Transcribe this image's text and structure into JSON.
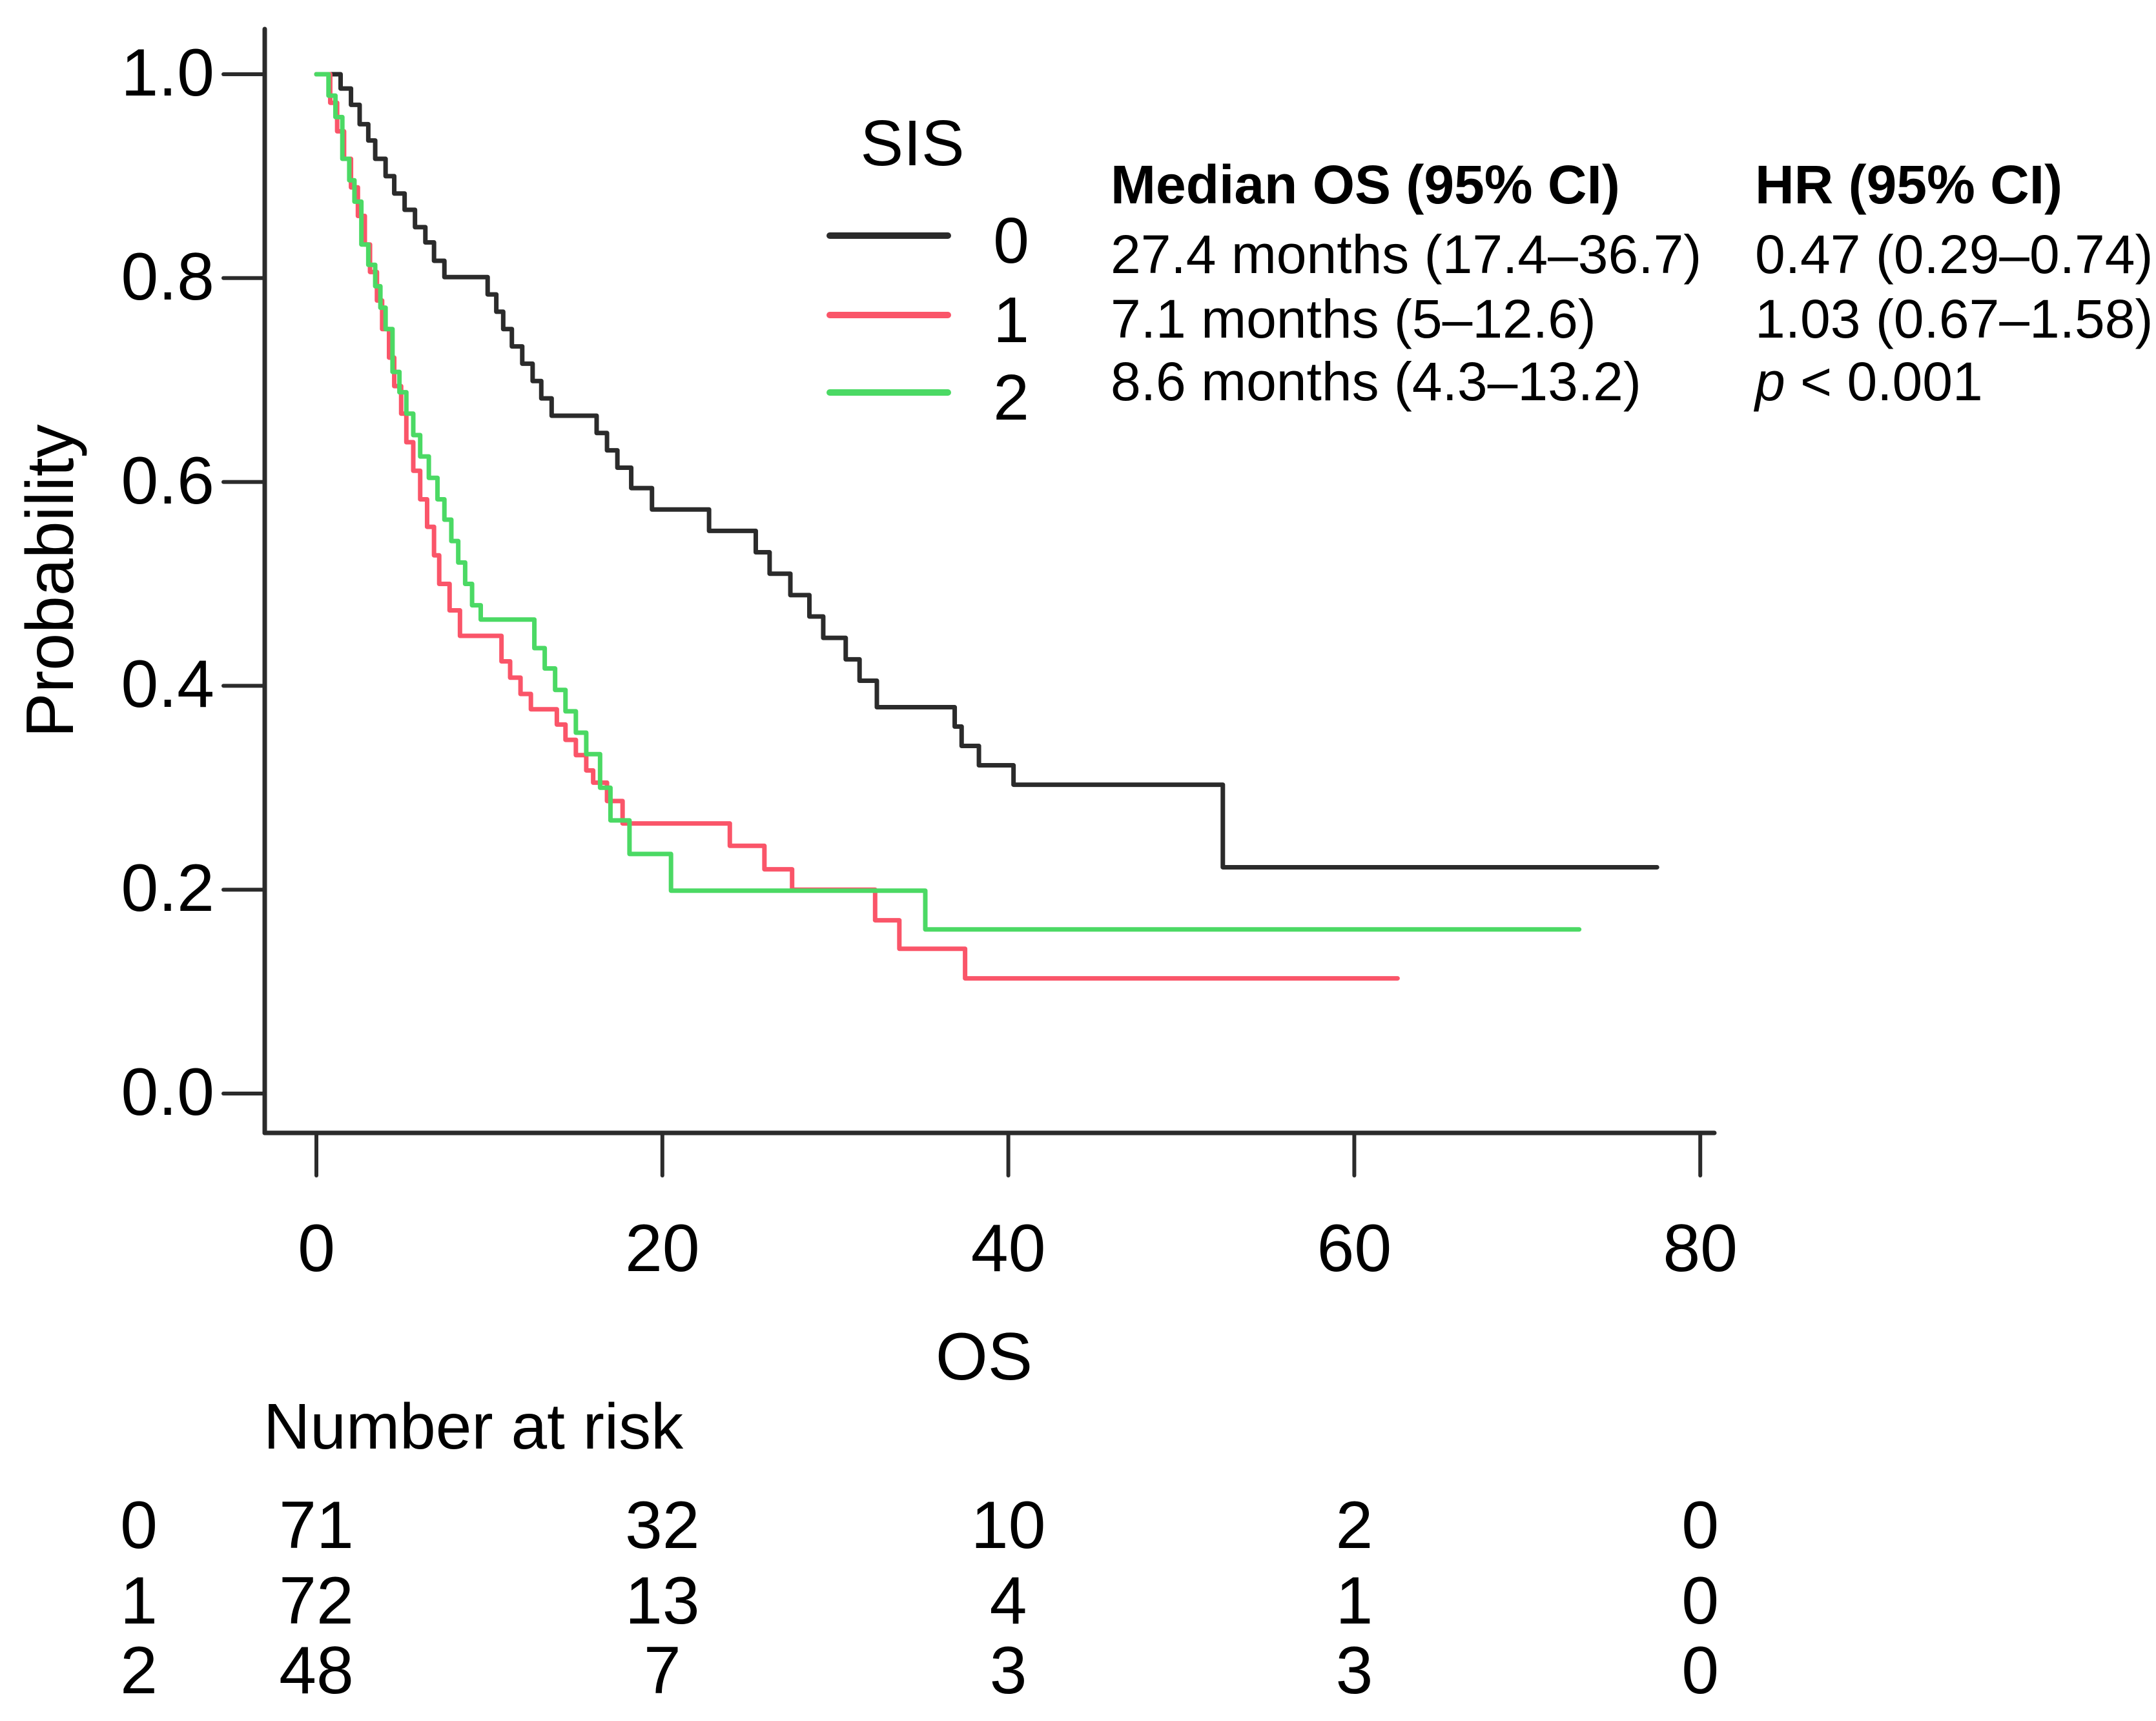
{
  "figure": {
    "background": "#ffffff",
    "text_color": "#000000"
  },
  "chart_data": {
    "type": "line",
    "subtype": "kaplan-meier-step",
    "title": "",
    "xlabel": "OS",
    "ylabel": "Probability",
    "xlim": [
      0,
      80
    ],
    "ylim": [
      0.0,
      1.0
    ],
    "xticks": [
      "0",
      "20",
      "40",
      "60",
      "80"
    ],
    "yticks": [
      "1.0",
      "0.8",
      "0.6",
      "0.4",
      "0.2",
      "0.0"
    ],
    "grid": false,
    "axis_color": "#2b2b2b",
    "legend": {
      "title": "SIS",
      "position": "upper-center-inside",
      "entries": [
        {
          "label": "0",
          "color": "#2b2b2b"
        },
        {
          "label": "1",
          "color": "#fa5569"
        },
        {
          "label": "2",
          "color": "#4bd964"
        }
      ]
    },
    "series": [
      {
        "name": "0",
        "color": "#2b2b2b",
        "median_os": "27.4 months (17.4–36.7)",
        "end_time": 77.5,
        "steps": [
          [
            0,
            1.0
          ],
          [
            1.4,
            0.986
          ],
          [
            2.0,
            0.97
          ],
          [
            2.5,
            0.951
          ],
          [
            3.0,
            0.935
          ],
          [
            3.4,
            0.917
          ],
          [
            4.0,
            0.9
          ],
          [
            4.5,
            0.883
          ],
          [
            5.1,
            0.867
          ],
          [
            5.7,
            0.85
          ],
          [
            6.3,
            0.835
          ],
          [
            6.8,
            0.817
          ],
          [
            7.4,
            0.801
          ],
          [
            9.9,
            0.784
          ],
          [
            10.4,
            0.767
          ],
          [
            10.8,
            0.75
          ],
          [
            11.3,
            0.733
          ],
          [
            11.9,
            0.716
          ],
          [
            12.5,
            0.699
          ],
          [
            13.0,
            0.682
          ],
          [
            13.6,
            0.665
          ],
          [
            16.2,
            0.648
          ],
          [
            16.8,
            0.631
          ],
          [
            17.4,
            0.614
          ],
          [
            18.2,
            0.594
          ],
          [
            19.4,
            0.573
          ],
          [
            22.7,
            0.552
          ],
          [
            25.4,
            0.531
          ],
          [
            26.2,
            0.51
          ],
          [
            27.4,
            0.489
          ],
          [
            28.5,
            0.468
          ],
          [
            29.3,
            0.447
          ],
          [
            30.6,
            0.426
          ],
          [
            31.4,
            0.405
          ],
          [
            32.4,
            0.379
          ],
          [
            36.9,
            0.36
          ],
          [
            37.3,
            0.341
          ],
          [
            38.3,
            0.322
          ],
          [
            40.3,
            0.303
          ],
          [
            52.4,
            0.222
          ]
        ]
      },
      {
        "name": "1",
        "color": "#fa5569",
        "median_os": "7.1 months (5–12.6)",
        "end_time": 62.5,
        "steps": [
          [
            0,
            1.0
          ],
          [
            0.8,
            0.972
          ],
          [
            1.2,
            0.944
          ],
          [
            1.6,
            0.917
          ],
          [
            2.0,
            0.889
          ],
          [
            2.4,
            0.861
          ],
          [
            2.8,
            0.833
          ],
          [
            3.1,
            0.806
          ],
          [
            3.5,
            0.778
          ],
          [
            3.8,
            0.75
          ],
          [
            4.2,
            0.722
          ],
          [
            4.5,
            0.694
          ],
          [
            4.9,
            0.667
          ],
          [
            5.2,
            0.639
          ],
          [
            5.6,
            0.611
          ],
          [
            6.0,
            0.583
          ],
          [
            6.4,
            0.556
          ],
          [
            6.8,
            0.528
          ],
          [
            7.1,
            0.5
          ],
          [
            7.7,
            0.474
          ],
          [
            8.3,
            0.449
          ],
          [
            10.7,
            0.424
          ],
          [
            11.2,
            0.408
          ],
          [
            11.8,
            0.392
          ],
          [
            12.4,
            0.377
          ],
          [
            13.9,
            0.362
          ],
          [
            14.4,
            0.347
          ],
          [
            15.0,
            0.332
          ],
          [
            15.6,
            0.317
          ],
          [
            16.0,
            0.305
          ],
          [
            16.8,
            0.287
          ],
          [
            17.7,
            0.265
          ],
          [
            23.9,
            0.243
          ],
          [
            25.9,
            0.22
          ],
          [
            27.5,
            0.2
          ],
          [
            32.3,
            0.17
          ],
          [
            33.7,
            0.142
          ],
          [
            37.5,
            0.113
          ]
        ]
      },
      {
        "name": "2",
        "color": "#4bd964",
        "median_os": "8.6 months (4.3–13.2)",
        "end_time": 73.0,
        "steps": [
          [
            0,
            1.0
          ],
          [
            0.7,
            0.979
          ],
          [
            1.1,
            0.958
          ],
          [
            1.5,
            0.917
          ],
          [
            1.9,
            0.896
          ],
          [
            2.2,
            0.875
          ],
          [
            2.6,
            0.833
          ],
          [
            3.0,
            0.813
          ],
          [
            3.4,
            0.792
          ],
          [
            3.7,
            0.771
          ],
          [
            4.0,
            0.75
          ],
          [
            4.4,
            0.708
          ],
          [
            4.8,
            0.688
          ],
          [
            5.2,
            0.667
          ],
          [
            5.6,
            0.646
          ],
          [
            6.0,
            0.625
          ],
          [
            6.5,
            0.604
          ],
          [
            7.0,
            0.583
          ],
          [
            7.4,
            0.563
          ],
          [
            7.8,
            0.542
          ],
          [
            8.2,
            0.521
          ],
          [
            8.6,
            0.5
          ],
          [
            9.0,
            0.479
          ],
          [
            9.5,
            0.465
          ],
          [
            12.6,
            0.437
          ],
          [
            13.2,
            0.417
          ],
          [
            13.8,
            0.396
          ],
          [
            14.4,
            0.375
          ],
          [
            15.0,
            0.354
          ],
          [
            15.6,
            0.333
          ],
          [
            16.4,
            0.3
          ],
          [
            17.0,
            0.268
          ],
          [
            18.1,
            0.235
          ],
          [
            20.5,
            0.199
          ],
          [
            35.2,
            0.161
          ]
        ]
      }
    ],
    "stats_table": {
      "columns": [
        "Median OS (95% CI)",
        "HR (95% CI)"
      ],
      "rows": [
        [
          "27.4 months (17.4–36.7)",
          "0.47 (0.29–0.74)"
        ],
        [
          "7.1 months (5–12.6)",
          "1.03 (0.67–1.58)"
        ],
        [
          "8.6 months (4.3–13.2)",
          "p < 0.001"
        ]
      ]
    },
    "risk_table": {
      "title": "Number at risk",
      "times": [
        0,
        20,
        40,
        60,
        80
      ],
      "rows": [
        {
          "label": "0",
          "counts": [
            "71",
            "32",
            "10",
            "2",
            "0"
          ]
        },
        {
          "label": "1",
          "counts": [
            "72",
            "13",
            "4",
            "1",
            "0"
          ]
        },
        {
          "label": "2",
          "counts": [
            "48",
            "7",
            "3",
            "3",
            "0"
          ]
        }
      ]
    }
  }
}
